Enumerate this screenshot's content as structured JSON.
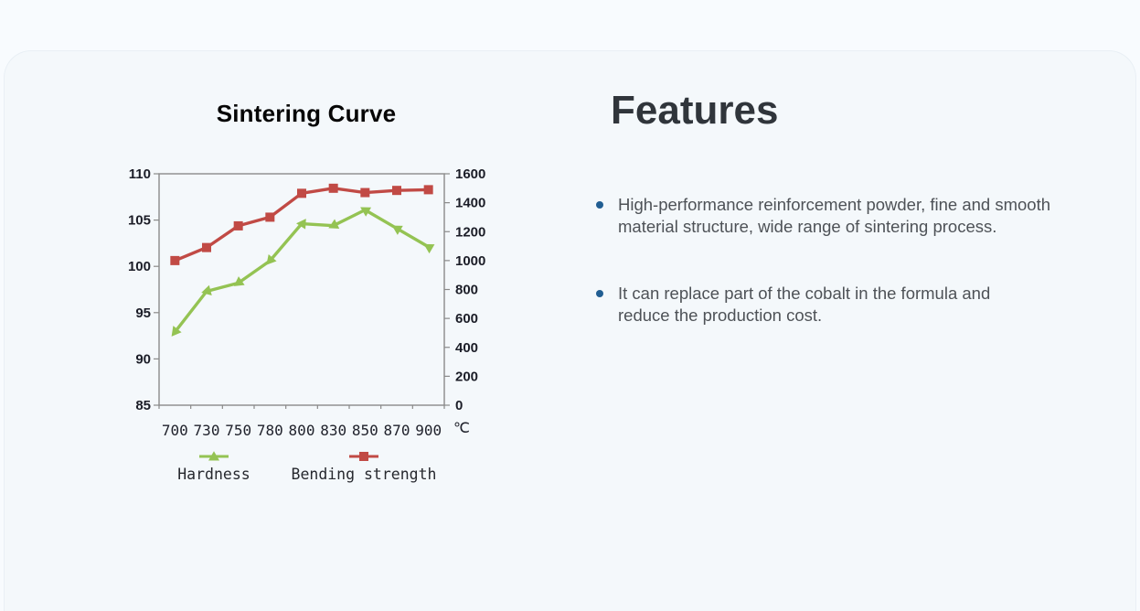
{
  "page": {
    "background": "#f8fbfe",
    "card_background": "#f4f8fb"
  },
  "chart_data": {
    "type": "line",
    "title": "Sintering Curve",
    "categories": [
      "700",
      "730",
      "750",
      "780",
      "800",
      "830",
      "850",
      "870",
      "900"
    ],
    "x_unit": "℃",
    "series": [
      {
        "name": "Hardness",
        "axis": "left",
        "marker": "triangle",
        "color": "#94c353",
        "values": [
          92.9,
          97.3,
          98.2,
          100.6,
          104.6,
          104.4,
          106.1,
          104.1,
          102.1
        ]
      },
      {
        "name": "Bending strength",
        "axis": "right",
        "marker": "square",
        "color": "#c14a45",
        "values": [
          1000,
          1090,
          1240,
          1300,
          1465,
          1500,
          1470,
          1485,
          1490
        ]
      }
    ],
    "left_axis": {
      "min": 85,
      "max": 110,
      "ticks": [
        85,
        90,
        95,
        100,
        105,
        110
      ]
    },
    "right_axis": {
      "min": 0,
      "max": 1600,
      "ticks": [
        0,
        200,
        400,
        600,
        800,
        1000,
        1200,
        1400,
        1600
      ]
    },
    "grid": false,
    "legend_position": "bottom",
    "axis_color": "#8a8a8a"
  },
  "features": {
    "title": "Features",
    "bullet_color": "#215e92",
    "items": [
      {
        "lines": [
          "High-performance reinforcement powder, fine and smooth",
          "material structure, wide range of sintering process."
        ]
      },
      {
        "lines": [
          "It can replace part of the cobalt in the formula and",
          "reduce the production cost."
        ]
      }
    ]
  }
}
